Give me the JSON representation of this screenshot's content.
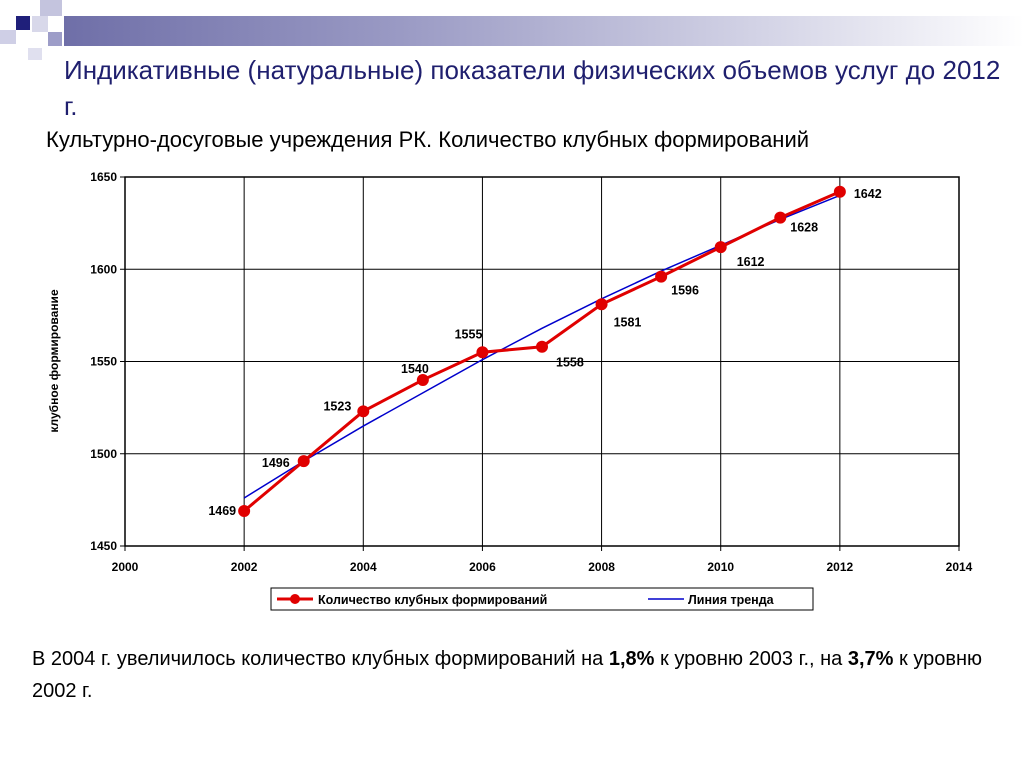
{
  "slide": {
    "title": "Индикативные (натуральные) показатели физических объемов услуг до 2012 г.",
    "subtitle": "Культурно-досуговые учреждения РК. Количество клубных формирований",
    "bottom_text": {
      "part1": "В 2004 г. увеличилось количество  клубных формирований на ",
      "bold1": "1,8%",
      "part2": " к уровню 2003 г., на ",
      "bold2": "3,7%",
      "part3": " к уровню 2002 г."
    }
  },
  "colors": {
    "title": "#1f1f6e",
    "decor_dark": "#1f1f7a",
    "decor_light": "#b8b8d8",
    "series_main": "#e00000",
    "series_trend": "#0000cc"
  },
  "chart_data": {
    "type": "line",
    "title": "",
    "xlabel": "",
    "ylabel": "клубное формирование",
    "xlim": [
      2000,
      2014
    ],
    "ylim": [
      1450,
      1650
    ],
    "x_ticks": [
      "2000",
      "2002",
      "2004",
      "2006",
      "2008",
      "2010",
      "2012",
      "2014"
    ],
    "y_ticks": [
      "1450",
      "1500",
      "1550",
      "1600",
      "1650"
    ],
    "grid": true,
    "legend_position": "bottom",
    "series": [
      {
        "name": "Количество клубных формирований",
        "x": [
          2002,
          2003,
          2004,
          2005,
          2006,
          2007,
          2008,
          2009,
          2010,
          2011,
          2012
        ],
        "values": [
          1469,
          1496,
          1523,
          1540,
          1555,
          1558,
          1581,
          1596,
          1612,
          1628,
          1642
        ],
        "labels": [
          "1469",
          "1496",
          "1523",
          "1540",
          "1555",
          "1558",
          "1581",
          "1596",
          "1612",
          "1628",
          "1642"
        ]
      },
      {
        "name": "Линия тренда",
        "x": [
          2002,
          2003,
          2004,
          2005,
          2006,
          2007,
          2008,
          2009,
          2010,
          2011,
          2012
        ],
        "values": [
          1476,
          1496,
          1515,
          1533,
          1551,
          1568,
          1584,
          1599,
          1613,
          1627,
          1640
        ]
      }
    ]
  }
}
